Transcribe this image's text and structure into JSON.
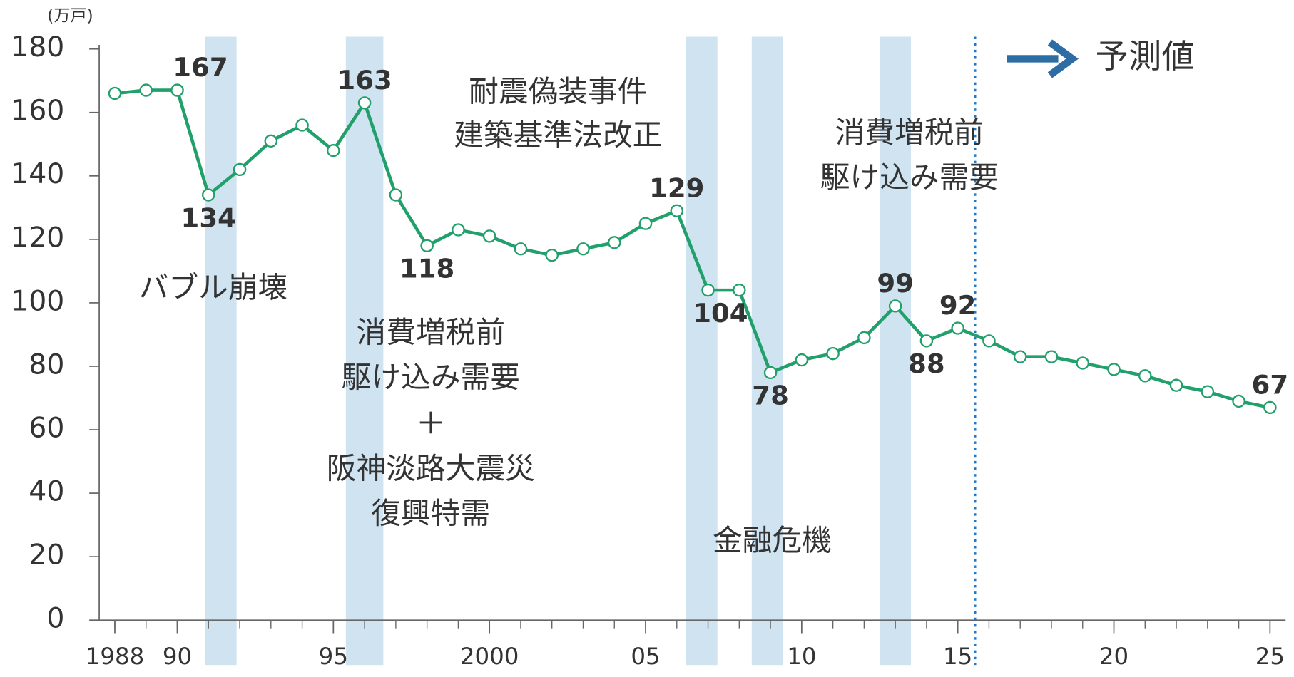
{
  "chart_data": {
    "type": "line",
    "unit_label": "(万戸)",
    "x": [
      1988,
      1989,
      1990,
      1991,
      1992,
      1993,
      1994,
      1995,
      1996,
      1997,
      1998,
      1999,
      2000,
      2001,
      2002,
      2003,
      2004,
      2005,
      2006,
      2007,
      2008,
      2009,
      2010,
      2011,
      2012,
      2013,
      2014,
      2015,
      2016,
      2017,
      2018,
      2019,
      2020,
      2021,
      2022,
      2023,
      2024,
      2025
    ],
    "values": [
      166,
      167,
      167,
      134,
      142,
      151,
      156,
      148,
      163,
      134,
      118,
      123,
      121,
      117,
      115,
      117,
      119,
      125,
      129,
      104,
      104,
      78,
      82,
      84,
      89,
      99,
      88,
      92,
      88,
      83,
      83,
      81,
      79,
      77,
      74,
      72,
      69,
      67
    ],
    "value_labels": [
      null,
      null,
      "167",
      "134",
      null,
      null,
      null,
      null,
      "163",
      null,
      "118",
      null,
      null,
      null,
      null,
      null,
      null,
      null,
      "129",
      "104",
      null,
      "78",
      null,
      null,
      null,
      "99",
      "88",
      "92",
      null,
      null,
      null,
      null,
      null,
      null,
      null,
      null,
      null,
      "67"
    ],
    "color": "#22a06b",
    "xlim": [
      1987.5,
      2025.5
    ],
    "xticks": [
      1988,
      {
        "value": 1990,
        "label": "90"
      },
      {
        "value": 1995,
        "label": "95"
      },
      2000,
      {
        "value": 2005,
        "label": "05"
      },
      {
        "value": 2010,
        "label": "10"
      },
      {
        "value": 2015,
        "label": "15"
      },
      {
        "value": 2020,
        "label": "20"
      },
      {
        "value": 2025,
        "label": "25"
      }
    ],
    "ylim": [
      0,
      180
    ],
    "yticks": [
      0,
      20,
      40,
      60,
      80,
      100,
      120,
      140,
      160,
      180
    ],
    "shaded_ranges": [
      [
        1990.9,
        1991.9
      ],
      [
        1995.4,
        1996.6
      ],
      [
        2006.3,
        2007.3
      ],
      [
        2008.4,
        2009.4
      ],
      [
        2012.5,
        2013.5
      ]
    ],
    "shade_color": "#cfe3f1",
    "forecast_start": 2015.55,
    "forecast_label": "予測値",
    "forecast_color": "#2e6da4",
    "annotations": [
      [
        "バブル崩壊"
      ],
      [
        "消費増税前",
        "駆け込み需要",
        "＋",
        "阪神淡路大震災",
        "復興特需"
      ],
      [
        "耐震偽装事件",
        "建築基準法改正"
      ],
      [
        "消費増税前",
        "駆け込み需要"
      ],
      [
        "金融危機"
      ]
    ]
  }
}
